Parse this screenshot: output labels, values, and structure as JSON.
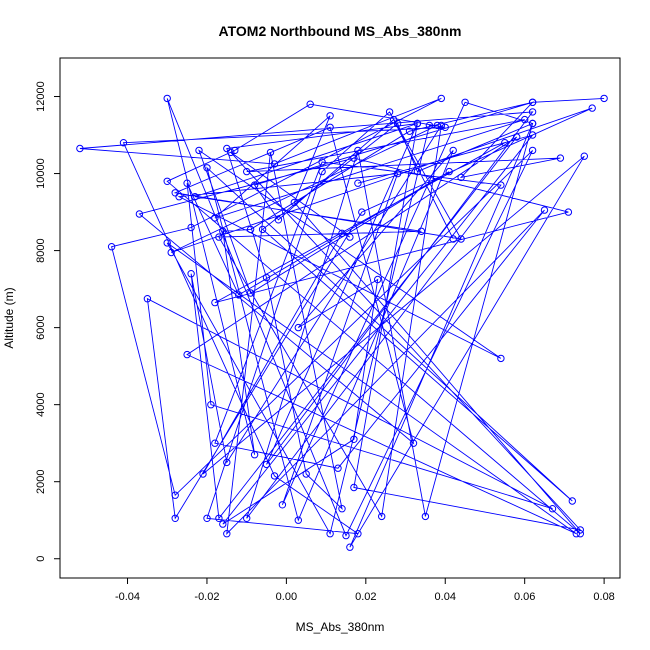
{
  "chart_data": {
    "type": "line",
    "title": "ATOM2 Northbound MS_Abs_380nm",
    "xlabel": "MS_Abs_380nm",
    "ylabel": "Altitude (m)",
    "xlim": [
      -0.057,
      0.084
    ],
    "ylim": [
      -500,
      13000
    ],
    "xticks": [
      -0.04,
      -0.02,
      0.0,
      0.02,
      0.04,
      0.06,
      0.08
    ],
    "xtick_labels": [
      "-0.04",
      "-0.02",
      "0.00",
      "0.02",
      "0.04",
      "0.06",
      "0.08"
    ],
    "yticks": [
      0,
      2000,
      4000,
      6000,
      8000,
      10000,
      12000
    ],
    "ytick_labels": [
      "0",
      "2000",
      "4000",
      "6000",
      "8000",
      "10000",
      "12000"
    ],
    "grid": false,
    "legend": "none",
    "series_color": "#0000ff",
    "series": [
      {
        "x": [
          0.08,
          0.062,
          0.031,
          -0.009,
          -0.016,
          -0.008,
          -0.03,
          0.015,
          0.062,
          -0.028,
          -0.044,
          -0.024,
          0.039,
          -0.003,
          -0.052,
          0.062,
          -0.005,
          0.033,
          0.017,
          0.074,
          -0.014,
          0.016,
          0.014,
          -0.021,
          0.075,
          0.016,
          0.062,
          0.045,
          -0.001,
          0.028,
          -0.027,
          0.054,
          -0.022,
          -0.009,
          0.041,
          -0.012,
          -0.025,
          -0.019,
          0.067,
          -0.035,
          -0.028,
          0.019,
          0.077,
          -0.029,
          0.038,
          0.036,
          0.011,
          -0.03,
          0.073,
          -0.025,
          0.058,
          -0.017,
          -0.024,
          -0.015,
          0.039,
          0.024,
          -0.017,
          0.034,
          -0.023,
          0.033,
          -0.015,
          -0.005,
          0.005,
          0.014,
          -0.004,
          -0.015,
          0.065,
          0.013,
          -0.018,
          0.009,
          0.054,
          -0.01,
          0.018,
          0.035,
          0.062,
          0.033,
          0.028,
          -0.006,
          0.072,
          -0.02,
          0.003,
          0.042,
          0.003,
          0.023,
          0.017,
          -0.016,
          0.062,
          0.018,
          0.055,
          -0.018,
          0.071,
          0.017,
          -0.037,
          0.032,
          0.011,
          -0.028,
          0.044,
          0.026,
          0.009,
          -0.02,
          0.018,
          -0.003,
          -0.041,
          0.04,
          0.006,
          -0.013,
          -0.03,
          0.074,
          0.002,
          0.011,
          -0.018,
          0.06,
          -0.01,
          0.069,
          0.044,
          0.062,
          -0.008,
          -0.002,
          0.027,
          0.042
        ],
        "y": [
          11950,
          11850,
          11100,
          8550,
          8500,
          2700,
          11950,
          600,
          10600,
          1650,
          8100,
          8600,
          11950,
          10250,
          10650,
          11600,
          2450,
          11300,
          1850,
          750,
          10550,
          8350,
          8450,
          2200,
          10450,
          300,
          11300,
          11850,
          1400,
          10000,
          9400,
          5200,
          10600,
          6900,
          10050,
          6850,
          9750,
          4000,
          1300,
          6750,
          1050,
          9000,
          11700,
          7950,
          11250,
          11250,
          650,
          8200,
          650,
          5300,
          10950,
          1050,
          7400,
          2500,
          11250,
          1100,
          8350,
          8500,
          9400,
          11300,
          10650,
          7300,
          2200,
          1300,
          10550,
          650,
          9050,
          2350,
          3000,
          10300,
          9700,
          1050,
          10600,
          1100,
          11300,
          10050,
          11300,
          8550,
          1500,
          10150,
          1000,
          10600,
          6000,
          7250,
          3100,
          900,
          11000,
          9750,
          10800,
          6650,
          9000,
          10400,
          8950,
          3000,
          11200,
          9500,
          8300,
          11600,
          10050,
          1050,
          650,
          2150,
          10800,
          11200,
          11800,
          10600,
          9800,
          650,
          9250,
          11500,
          8850,
          11400,
          10050,
          10400,
          9900,
          11850,
          9700,
          8800,
          11400,
          8300
        ]
      }
    ]
  }
}
